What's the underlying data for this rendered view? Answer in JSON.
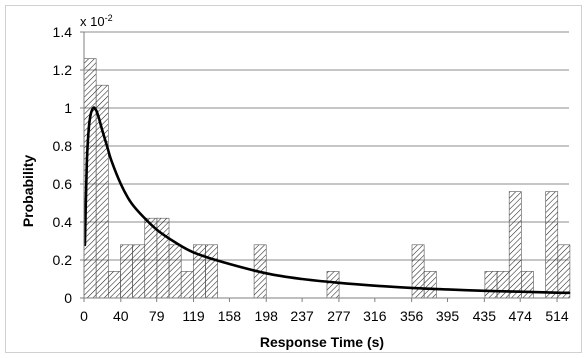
{
  "chart_data": {
    "type": "bar",
    "title": "",
    "xlabel": "Response Time (s)",
    "ylabel": "Probability",
    "y_multiplier": {
      "base": "x 10",
      "exponent": "-2"
    },
    "ylim": [
      0,
      1.4
    ],
    "y_ticks": [
      "0",
      "0.2",
      "0.4",
      "0.6",
      "0.8",
      "1",
      "1.2",
      "1.4"
    ],
    "y_tick_values": [
      0,
      0.2,
      0.4,
      0.6,
      0.8,
      1.0,
      1.2,
      1.4
    ],
    "xlim": [
      0,
      527
    ],
    "x_ticks": [
      "0",
      "40",
      "79",
      "119",
      "158",
      "198",
      "237",
      "277",
      "316",
      "356",
      "395",
      "435",
      "474",
      "514"
    ],
    "x_tick_values": [
      0,
      40,
      79,
      119,
      158,
      198,
      237,
      277,
      316,
      356,
      395,
      435,
      474,
      514
    ],
    "grid": "horizontal",
    "bar_fill": "diagonal-hatch",
    "bar_color": "#333333",
    "bin_width": 13.2,
    "bins": [
      {
        "x_start": 0,
        "value": 1.26
      },
      {
        "x_start": 13.2,
        "value": 1.12
      },
      {
        "x_start": 26.4,
        "value": 0.14
      },
      {
        "x_start": 39.6,
        "value": 0.28
      },
      {
        "x_start": 52.8,
        "value": 0.28
      },
      {
        "x_start": 66.0,
        "value": 0.42
      },
      {
        "x_start": 79.2,
        "value": 0.42
      },
      {
        "x_start": 92.4,
        "value": 0.28
      },
      {
        "x_start": 105.6,
        "value": 0.14
      },
      {
        "x_start": 118.8,
        "value": 0.28
      },
      {
        "x_start": 132.0,
        "value": 0.28
      },
      {
        "x_start": 184.8,
        "value": 0.28
      },
      {
        "x_start": 264.0,
        "value": 0.14
      },
      {
        "x_start": 356.4,
        "value": 0.28
      },
      {
        "x_start": 369.6,
        "value": 0.14
      },
      {
        "x_start": 435.6,
        "value": 0.14
      },
      {
        "x_start": 448.8,
        "value": 0.14
      },
      {
        "x_start": 462.0,
        "value": 0.56
      },
      {
        "x_start": 475.2,
        "value": 0.14
      },
      {
        "x_start": 501.6,
        "value": 0.56
      },
      {
        "x_start": 514.8,
        "value": 0.28
      }
    ],
    "fit_curve": {
      "type": "line",
      "color": "#000000",
      "x": [
        1,
        3,
        5,
        7,
        10,
        13,
        16,
        20,
        25,
        30,
        40,
        50,
        60,
        79,
        100,
        119,
        150,
        198,
        237,
        277,
        316,
        356,
        395,
        435,
        474,
        514,
        527
      ],
      "y": [
        0.28,
        0.7,
        0.88,
        0.96,
        1.0,
        0.99,
        0.95,
        0.88,
        0.8,
        0.72,
        0.6,
        0.51,
        0.45,
        0.36,
        0.29,
        0.24,
        0.19,
        0.13,
        0.1,
        0.08,
        0.065,
        0.053,
        0.045,
        0.038,
        0.033,
        0.028,
        0.027
      ]
    }
  }
}
